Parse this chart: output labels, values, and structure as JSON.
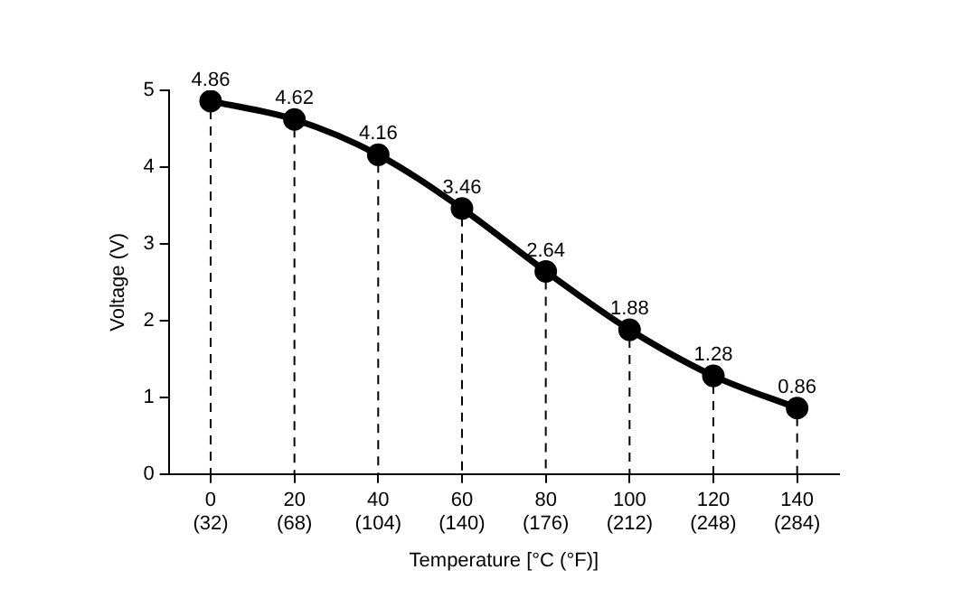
{
  "chart_data": {
    "type": "line",
    "xlabel": "Temperature [°C (°F)]",
    "ylabel": "Voltage (V)",
    "categories": [
      "0 (32)",
      "20 (68)",
      "40 (104)",
      "60 (140)",
      "80 (176)",
      "100 (212)",
      "120 (248)",
      "140 (284)"
    ],
    "series": [
      {
        "color": "#000000",
        "values": [
          4.86,
          4.62,
          4.16,
          3.46,
          2.64,
          1.88,
          1.28,
          0.86
        ]
      }
    ],
    "ylim": [
      0,
      5
    ],
    "yticks": [
      0,
      1,
      2,
      3,
      4,
      5
    ],
    "grid": "x",
    "legend": false,
    "marker": "circle",
    "line_style": "solid",
    "data_labels": true
  }
}
